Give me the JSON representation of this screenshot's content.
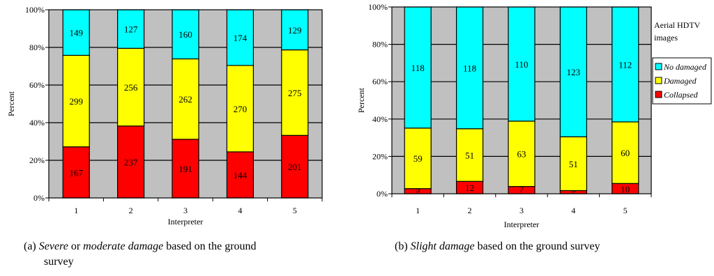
{
  "chart_data": [
    {
      "type": "bar",
      "stacked": true,
      "normalized": true,
      "categories": [
        "1",
        "2",
        "3",
        "4",
        "5"
      ],
      "series": [
        {
          "name": "",
          "color": "#ff0000",
          "values": [
            167,
            237,
            191,
            144,
            201
          ]
        },
        {
          "name": "",
          "color": "#ffff00",
          "values": [
            299,
            256,
            262,
            270,
            275
          ]
        },
        {
          "name": "",
          "color": "#00ffff",
          "values": [
            149,
            127,
            160,
            174,
            129
          ]
        }
      ],
      "xlabel": "Interpreter",
      "ylabel": "Percent",
      "yticks": [
        "0%",
        "20%",
        "40%",
        "60%",
        "80%",
        "100%"
      ],
      "ylim": [
        0,
        100
      ],
      "grid": true,
      "plot_background": "#c0c0c0",
      "caption": {
        "prefix": "(a) ",
        "italic1": "Severe",
        "mid": " or ",
        "italic2": "moderate damage",
        "suffix": " based on the ground",
        "line2": "survey"
      }
    },
    {
      "type": "bar",
      "stacked": true,
      "normalized": true,
      "categories": [
        "1",
        "2",
        "3",
        "4",
        "5"
      ],
      "series": [
        {
          "name": "Collapsed",
          "color": "#ff0000",
          "values": [
            5,
            12,
            7,
            3,
            10
          ]
        },
        {
          "name": "Damaged",
          "color": "#ffff00",
          "values": [
            59,
            51,
            63,
            51,
            60
          ]
        },
        {
          "name": "No damaged",
          "color": "#00ffff",
          "values": [
            118,
            118,
            110,
            123,
            112
          ]
        }
      ],
      "xlabel": "Interpreter",
      "ylabel": "Percent",
      "yticks": [
        "0%",
        "20%",
        "40%",
        "60%",
        "80%",
        "100%"
      ],
      "ylim": [
        0,
        100
      ],
      "grid": true,
      "plot_background": "#c0c0c0",
      "legend": {
        "title_line1": "Aerial HDTV",
        "title_line2": "images",
        "placement": "right",
        "order": [
          "No damaged",
          "Damaged",
          "Collapsed"
        ]
      },
      "caption": {
        "prefix": "(b) ",
        "italic1": "Slight damage",
        "suffix": " based on the ground survey"
      }
    }
  ]
}
